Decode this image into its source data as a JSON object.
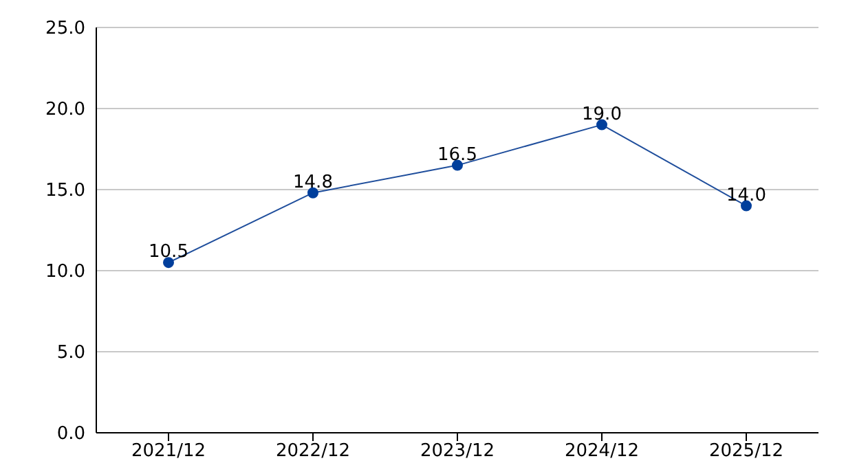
{
  "chart_data": {
    "type": "line",
    "categories": [
      "2021/12",
      "2022/12",
      "2023/12",
      "2024/12",
      "2025/12"
    ],
    "series": [
      {
        "color": "#1f4e9c",
        "values": [
          10.5,
          14.8,
          16.5,
          19.0,
          14.0
        ],
        "value_labels": [
          "10.5",
          "14.8",
          "16.5",
          "19.0",
          "14.0"
        ]
      }
    ],
    "ylim": [
      0,
      25
    ],
    "yticks": [
      {
        "value": 0,
        "label": "0.0"
      },
      {
        "value": 5,
        "label": "5.0"
      },
      {
        "value": 10,
        "label": "10.0"
      },
      {
        "value": 15,
        "label": "15.0"
      },
      {
        "value": 20,
        "label": "20.0"
      },
      {
        "value": 25,
        "label": "25.0"
      }
    ],
    "grid": "y",
    "marker": "circle",
    "legend": false
  }
}
